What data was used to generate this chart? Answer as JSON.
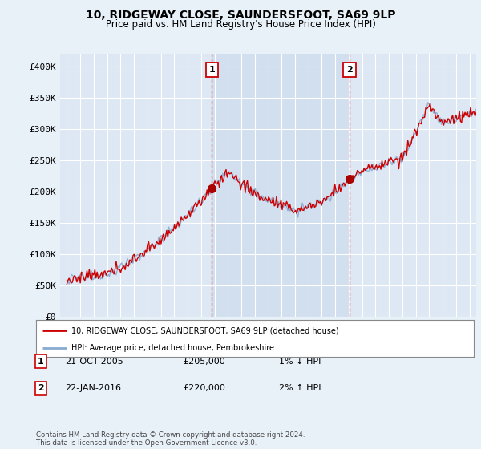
{
  "title": "10, RIDGEWAY CLOSE, SAUNDERSFOOT, SA69 9LP",
  "subtitle": "Price paid vs. HM Land Registry's House Price Index (HPI)",
  "xlim_start": 1994.5,
  "xlim_end": 2025.5,
  "ylim": [
    0,
    420000
  ],
  "yticks": [
    0,
    50000,
    100000,
    150000,
    200000,
    250000,
    300000,
    350000,
    400000
  ],
  "ytick_labels": [
    "£0",
    "£50K",
    "£100K",
    "£150K",
    "£200K",
    "£250K",
    "£300K",
    "£350K",
    "£400K"
  ],
  "background_color": "#e8f0f8",
  "plot_bg_color": "#dde8f4",
  "plot_bg_highlight": "#cddcee",
  "grid_color": "#ffffff",
  "sale1_date": 2005.81,
  "sale1_price": 205000,
  "sale1_label": "1",
  "sale2_date": 2016.07,
  "sale2_price": 220000,
  "sale2_label": "2",
  "legend_line1": "10, RIDGEWAY CLOSE, SAUNDERSFOOT, SA69 9LP (detached house)",
  "legend_line2": "HPI: Average price, detached house, Pembrokeshire",
  "ann1_date": "21-OCT-2005",
  "ann1_price": "£205,000",
  "ann1_hpi": "1% ↓ HPI",
  "ann2_date": "22-JAN-2016",
  "ann2_price": "£220,000",
  "ann2_hpi": "2% ↑ HPI",
  "footer": "Contains HM Land Registry data © Crown copyright and database right 2024.\nThis data is licensed under the Open Government Licence v3.0.",
  "line_color_property": "#cc0000",
  "line_color_hpi": "#88aad0",
  "vline_color": "#cc0000",
  "marker_color": "#aa0000"
}
